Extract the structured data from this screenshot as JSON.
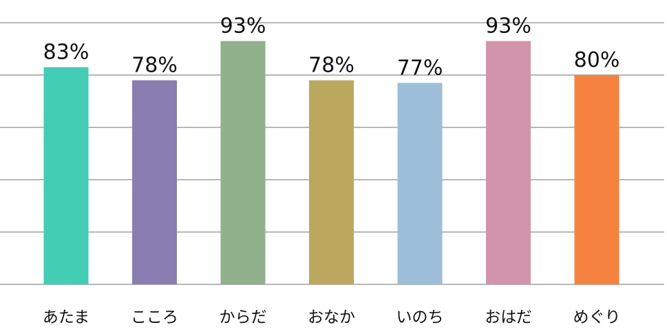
{
  "chart_data": {
    "type": "bar",
    "categories": [
      "あたま",
      "こころ",
      "からだ",
      "おなか",
      "いのち",
      "おはだ",
      "めぐり"
    ],
    "values": [
      83,
      78,
      93,
      78,
      77,
      93,
      80
    ],
    "data_labels": [
      "83%",
      "78%",
      "93%",
      "78%",
      "77%",
      "93%",
      "80%"
    ],
    "colors": [
      "#43CDB4",
      "#8A7DB2",
      "#91B08C",
      "#BBA85E",
      "#9DBED8",
      "#D194AB",
      "#F6823F"
    ],
    "ylim": [
      0,
      100
    ],
    "gridlines": [
      0,
      20,
      40,
      60,
      80,
      100
    ],
    "grid": true,
    "title": "",
    "xlabel": "",
    "ylabel": ""
  }
}
